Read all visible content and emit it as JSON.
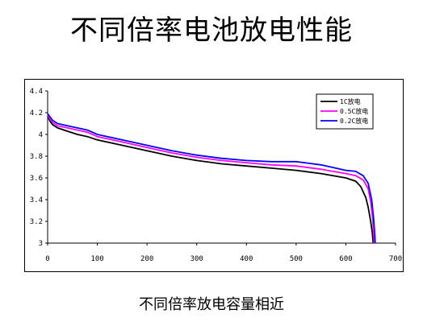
{
  "title": "不同倍率电池放电性能",
  "caption": "不同倍率放电容量相近",
  "chart_data": {
    "type": "line",
    "xlim": [
      0,
      700
    ],
    "ylim": [
      3,
      4.4
    ],
    "x_ticks": [
      0,
      100,
      200,
      300,
      400,
      500,
      600,
      700
    ],
    "y_ticks": [
      3,
      3.2,
      3.4,
      3.6,
      3.8,
      4,
      4.2,
      4.4
    ],
    "y_tick_labels": [
      "3",
      "3.2",
      "3.4",
      "3.6",
      "3.8",
      "4",
      "4.2",
      "4.4"
    ],
    "grid": false,
    "legend_position": "top-right",
    "series": [
      {
        "name": "1C放电",
        "color": "#000000",
        "x": [
          0,
          5,
          10,
          20,
          40,
          60,
          80,
          100,
          150,
          200,
          250,
          300,
          350,
          400,
          450,
          500,
          550,
          600,
          620,
          630,
          640,
          645,
          650,
          653,
          655
        ],
        "y": [
          4.17,
          4.12,
          4.09,
          4.06,
          4.03,
          4.0,
          3.98,
          3.95,
          3.9,
          3.85,
          3.8,
          3.76,
          3.73,
          3.71,
          3.69,
          3.67,
          3.64,
          3.6,
          3.57,
          3.52,
          3.42,
          3.33,
          3.2,
          3.1,
          3.0
        ]
      },
      {
        "name": "0.5C放电",
        "color": "#ff00ff",
        "x": [
          0,
          5,
          10,
          20,
          40,
          60,
          80,
          100,
          150,
          200,
          250,
          300,
          350,
          400,
          450,
          500,
          550,
          600,
          620,
          635,
          645,
          650,
          654,
          656,
          657
        ],
        "y": [
          4.18,
          4.14,
          4.11,
          4.08,
          4.06,
          4.04,
          4.02,
          3.98,
          3.93,
          3.88,
          3.83,
          3.79,
          3.76,
          3.74,
          3.72,
          3.71,
          3.68,
          3.64,
          3.62,
          3.58,
          3.5,
          3.38,
          3.22,
          3.1,
          3.0
        ]
      },
      {
        "name": "0.2C放电",
        "color": "#0000ff",
        "x": [
          0,
          5,
          10,
          20,
          40,
          60,
          80,
          100,
          150,
          200,
          250,
          300,
          350,
          400,
          450,
          500,
          550,
          600,
          620,
          635,
          645,
          652,
          656,
          658,
          659
        ],
        "y": [
          4.19,
          4.16,
          4.13,
          4.1,
          4.08,
          4.06,
          4.04,
          4.0,
          3.95,
          3.9,
          3.85,
          3.81,
          3.78,
          3.76,
          3.75,
          3.75,
          3.72,
          3.67,
          3.66,
          3.62,
          3.55,
          3.4,
          3.22,
          3.1,
          3.0
        ]
      }
    ]
  }
}
